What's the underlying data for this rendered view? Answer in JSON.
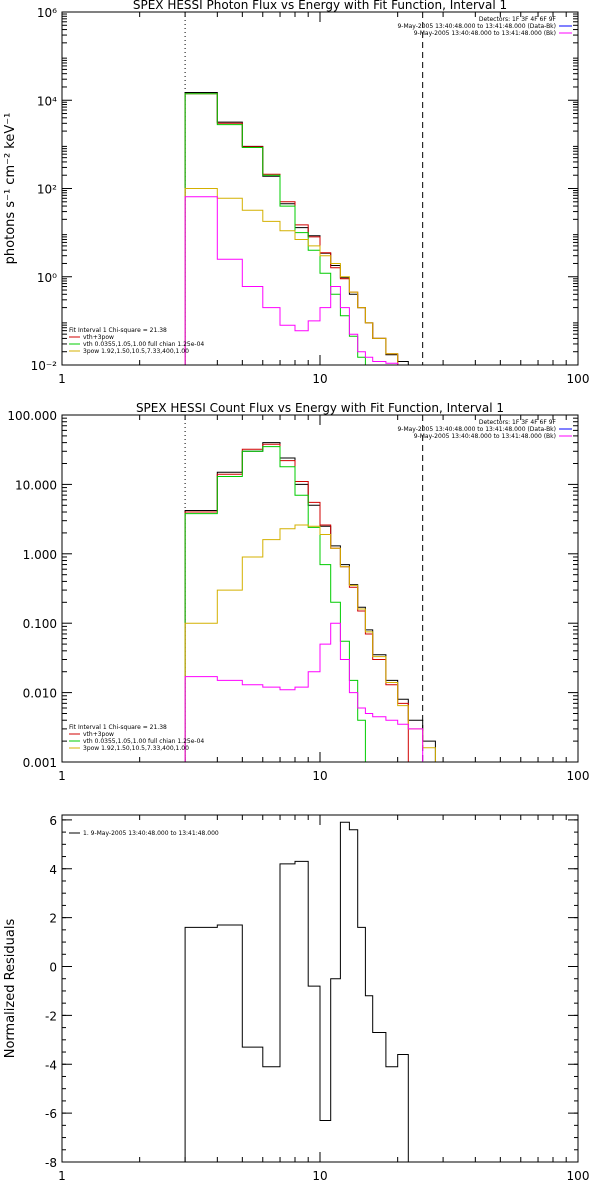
{
  "chart_data": [
    {
      "type": "line",
      "title": "SPEX HESSI Photon Flux vs Energy with Fit Function, Interval 1",
      "ylabel": "photons s⁻¹ cm⁻² keV⁻¹",
      "xlabel": "",
      "xscale": "log",
      "yscale": "log",
      "xlim": [
        1,
        100
      ],
      "ylim": [
        0.01,
        1000000
      ],
      "x_ticks": [
        {
          "v": 1,
          "label": "1"
        },
        {
          "v": 10,
          "label": "10"
        },
        {
          "v": 100,
          "label": "100"
        }
      ],
      "y_ticks": [
        {
          "v": 0.01,
          "label": "10⁻²"
        },
        {
          "v": 1,
          "label": "10⁰"
        },
        {
          "v": 100,
          "label": "10²"
        },
        {
          "v": 10000,
          "label": "10⁴"
        },
        {
          "v": 1000000,
          "label": "10⁶"
        }
      ],
      "vlines": [
        {
          "x": 3,
          "style": "dotted"
        },
        {
          "x": 25,
          "style": "dashed"
        }
      ],
      "info_lines": [
        "Detectors: 1F 3F 4F 6F 9F",
        "9-May-2005 13:40:48.000 to 13:41:48.000 (Data-Bk)",
        "9-May-2005 13:40:48.000 to 13:41:48.000 (Bk)"
      ],
      "info_colors": [
        "",
        "#0000ff",
        "#ff00ff"
      ],
      "legend_heading": "Fit Interval 1    Chi-square = 21.38",
      "legend": [
        {
          "label": "vth+3pow",
          "color": "#d00000"
        },
        {
          "label": "vth 0.0355,1.05,1.00  full chian 1.25e-04",
          "color": "#00cc00"
        },
        {
          "label": "3pow 1.92,1.50,10.5,7.33,400,1.00",
          "color": "#d4b000"
        }
      ],
      "edges": [
        3,
        4,
        5,
        6,
        7,
        8,
        9,
        10,
        11,
        12,
        13,
        14,
        15,
        16,
        18,
        20,
        22,
        25,
        28,
        32
      ],
      "series": [
        {
          "color": "#000000",
          "values": [
            15000,
            3200,
            900,
            190,
            45,
            13,
            8.5,
            3.4,
            1.8,
            0.95,
            0.4,
            0.2,
            0.09,
            0.04,
            0.017,
            0.012,
            0.01,
            null,
            null
          ]
        },
        {
          "color": "#d00000",
          "values": [
            14000,
            3000,
            880,
            210,
            50,
            15,
            8,
            3.5,
            1.6,
            0.9,
            0.45,
            0.2,
            0.09,
            0.04,
            0.018,
            0.01,
            null,
            null,
            null
          ]
        },
        {
          "color": "#00cc00",
          "values": [
            14000,
            2800,
            850,
            200,
            40,
            10,
            4,
            1.2,
            0.4,
            0.13,
            0.045,
            0.015,
            null,
            null,
            null,
            null,
            null,
            null,
            null
          ]
        },
        {
          "color": "#d4b000",
          "values": [
            100,
            60,
            32,
            18,
            11,
            7,
            5,
            3,
            2,
            1,
            0.45,
            0.2,
            0.09,
            0.04,
            0.018,
            0.01,
            0.01,
            0.01,
            null
          ]
        },
        {
          "color": "#ff00ff",
          "values": [
            65,
            2.5,
            0.6,
            0.2,
            0.08,
            0.06,
            0.1,
            0.2,
            0.6,
            0.2,
            0.05,
            0.02,
            0.015,
            0.012,
            0.011,
            0.01,
            null,
            null,
            null
          ]
        }
      ]
    },
    {
      "type": "line",
      "title": "SPEX HESSI Count Flux vs Energy with Fit Function, Interval 1",
      "ylabel": "",
      "xlabel": "",
      "xscale": "log",
      "yscale": "log",
      "xlim": [
        1,
        100
      ],
      "ylim": [
        0.001,
        100
      ],
      "x_ticks": [
        {
          "v": 1,
          "label": "1"
        },
        {
          "v": 10,
          "label": "10"
        },
        {
          "v": 100,
          "label": "100"
        }
      ],
      "y_ticks": [
        {
          "v": 0.001,
          "label": "0.001"
        },
        {
          "v": 0.01,
          "label": "0.010"
        },
        {
          "v": 0.1,
          "label": "0.100"
        },
        {
          "v": 1,
          "label": "1.000"
        },
        {
          "v": 10,
          "label": "10.000"
        },
        {
          "v": 100,
          "label": "100.000"
        }
      ],
      "vlines": [
        {
          "x": 3,
          "style": "dotted"
        },
        {
          "x": 25,
          "style": "dashed"
        }
      ],
      "info_lines": [
        "Detectors: 1F 3F 4F 6F 9F",
        "9-May-2005 13:40:48.000 to 13:41:48.000 (Data-Bk)",
        "9-May-2005 13:40:48.000 to 13:41:48.000 (Bk)"
      ],
      "info_colors": [
        "",
        "#0000ff",
        "#ff00ff"
      ],
      "legend_heading": "Fit Interval 1    Chi-square = 21.38",
      "legend": [
        {
          "label": "vth+3pow",
          "color": "#d00000"
        },
        {
          "label": "vth 0.0355,1.05,1.00  full chian 1.25e-04",
          "color": "#00cc00"
        },
        {
          "label": "3pow 1.92,1.50,10.5,7.33,400,1.00",
          "color": "#d4b000"
        }
      ],
      "edges": [
        3,
        4,
        5,
        6,
        7,
        8,
        9,
        10,
        11,
        12,
        13,
        14,
        15,
        16,
        18,
        20,
        22,
        25,
        28,
        32
      ],
      "series": [
        {
          "color": "#000000",
          "values": [
            4.2,
            15,
            30,
            40,
            24,
            10,
            5,
            2.5,
            1.3,
            0.7,
            0.36,
            0.17,
            0.08,
            0.035,
            0.015,
            0.008,
            0.004,
            0.002,
            null
          ]
        },
        {
          "color": "#d00000",
          "values": [
            4.0,
            14,
            32,
            38,
            22,
            11,
            5.5,
            2.6,
            1.2,
            0.65,
            0.33,
            0.15,
            0.07,
            0.03,
            0.013,
            0.007,
            null,
            null,
            null
          ]
        },
        {
          "color": "#00cc00",
          "values": [
            3.8,
            13,
            30,
            35,
            18,
            7,
            2.4,
            0.7,
            0.2,
            0.055,
            0.015,
            0.004,
            0.001,
            null,
            null,
            null,
            null,
            null,
            null
          ]
        },
        {
          "color": "#d4b000",
          "values": [
            0.1,
            0.3,
            0.9,
            1.6,
            2.3,
            2.6,
            2.5,
            1.9,
            1.2,
            0.65,
            0.35,
            0.16,
            0.075,
            0.033,
            0.014,
            0.0065,
            0.003,
            0.0016,
            null
          ]
        },
        {
          "color": "#ff00ff",
          "values": [
            0.017,
            0.015,
            0.013,
            0.012,
            0.011,
            0.012,
            0.02,
            0.05,
            0.1,
            0.03,
            0.01,
            0.006,
            0.005,
            0.0045,
            0.004,
            0.0035,
            0.003,
            null,
            null
          ]
        }
      ]
    },
    {
      "type": "line",
      "title": "",
      "ylabel": "Normalized Residuals",
      "xlabel": "",
      "xscale": "log",
      "yscale": "linear",
      "xlim": [
        1,
        100
      ],
      "ylim": [
        -8,
        6.2
      ],
      "x_ticks": [
        {
          "v": 1,
          "label": "1"
        },
        {
          "v": 10,
          "label": "10"
        },
        {
          "v": 100,
          "label": "100"
        }
      ],
      "y_ticks": [
        {
          "v": -8,
          "label": "-8"
        },
        {
          "v": -6,
          "label": "-6"
        },
        {
          "v": -4,
          "label": "-4"
        },
        {
          "v": -2,
          "label": "-2"
        },
        {
          "v": 0,
          "label": "0"
        },
        {
          "v": 2,
          "label": "2"
        },
        {
          "v": 4,
          "label": "4"
        },
        {
          "v": 6,
          "label": "6"
        }
      ],
      "vlines": [],
      "info_lines": [],
      "info_colors": [],
      "legend_heading": "",
      "legend": [
        {
          "label": "1.  9-May-2005 13:40:48.000 to 13:41:48.000",
          "color": "#000000"
        }
      ],
      "edges": [
        3,
        4,
        5,
        6,
        7,
        8,
        9,
        10,
        11,
        12,
        13,
        14,
        15,
        16,
        18,
        20,
        22,
        25
      ],
      "series": [
        {
          "color": "#000000",
          "values": [
            1.6,
            1.7,
            -3.3,
            -4.1,
            4.2,
            4.3,
            -0.8,
            -6.3,
            -0.5,
            5.9,
            5.6,
            1.6,
            -1.2,
            -2.7,
            -4.1,
            -3.6,
            -8.0
          ]
        }
      ]
    }
  ]
}
